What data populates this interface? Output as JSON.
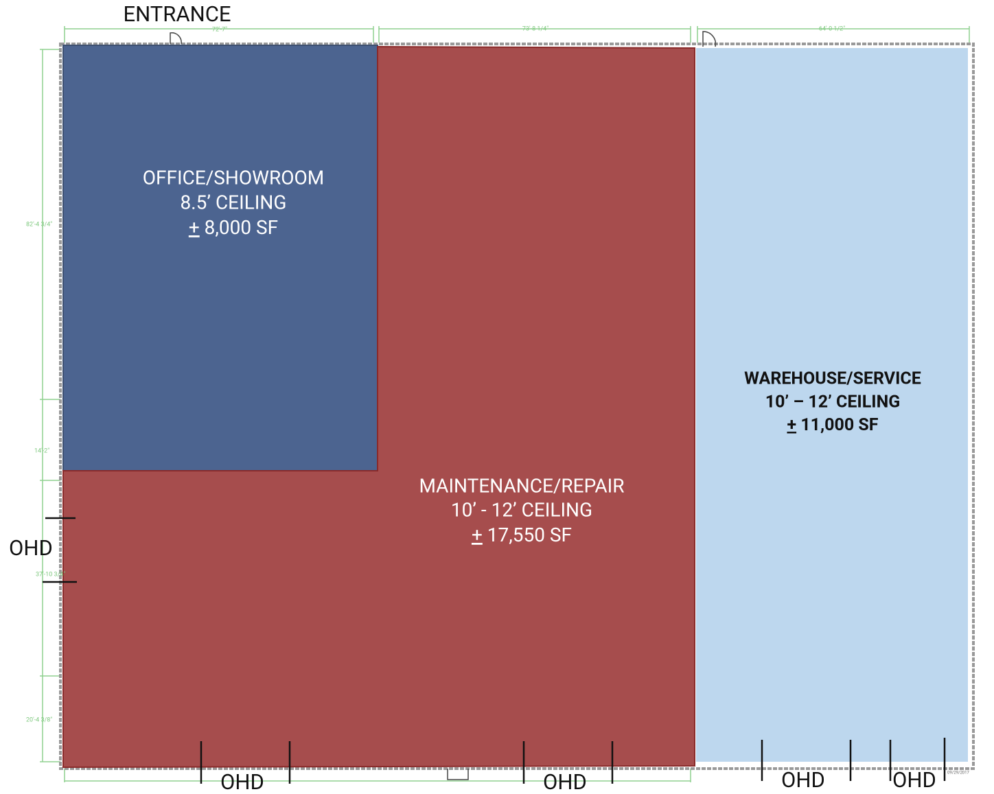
{
  "entrance": "ENTRANCE",
  "rooms": [
    {
      "name": "OFFICE/SHOWROOM",
      "ceiling": "8.5’ CEILING",
      "sign": "+",
      "area": "8,000 SF"
    },
    {
      "name": "MAINTENANCE/REPAIR",
      "ceiling": "10’ - 12’ CEILING",
      "sign": "+",
      "area": "17,550 SF"
    },
    {
      "name": "WAREHOUSE/SERVICE",
      "ceiling": "10’ – 12’ CEILING",
      "sign": "+",
      "area": "11,000 SF"
    }
  ],
  "doors": [
    "OHD",
    "OHD",
    "OHD",
    "OHD",
    "OHD"
  ],
  "dimensions": [
    "72'-7\"",
    "73'-8 1/4\"",
    "64'-0 1/2\"",
    "82'-4 3/4\"",
    "14'-2\"",
    "37'-10 3/4\"",
    "20'-4 3/8\""
  ],
  "date": "09/29/2017"
}
